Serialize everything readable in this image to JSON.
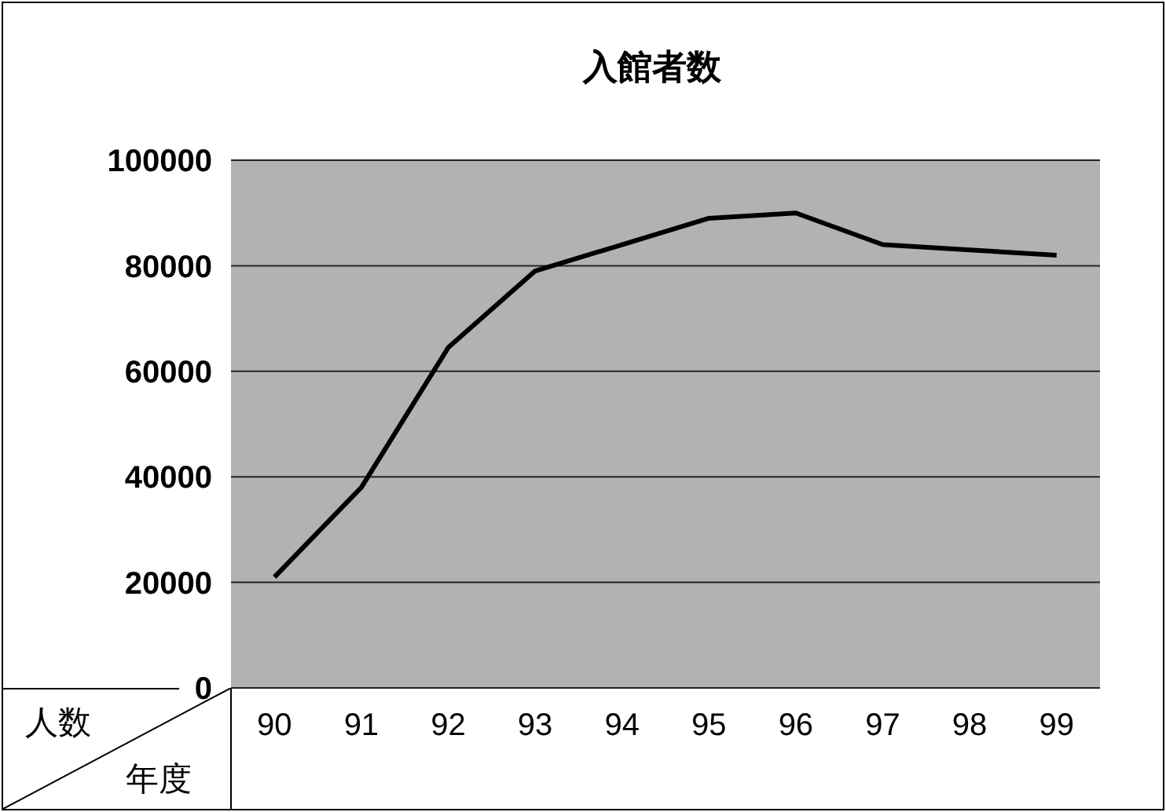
{
  "chart_data": {
    "type": "line",
    "title": "入館者数",
    "xlabel": "年度",
    "ylabel": "人数",
    "categories": [
      "90",
      "91",
      "92",
      "93",
      "94",
      "95",
      "96",
      "97",
      "98",
      "99"
    ],
    "series": [
      {
        "color": "#000000",
        "values": [
          21000,
          38000,
          64500,
          79000,
          84000,
          89000,
          90000,
          84000,
          83000,
          82000
        ]
      }
    ],
    "ylim": [
      0,
      100000
    ],
    "yticks": [
      0,
      20000,
      40000,
      60000,
      80000,
      100000
    ],
    "grid": "y",
    "marker": "none",
    "line_style": "solid"
  }
}
